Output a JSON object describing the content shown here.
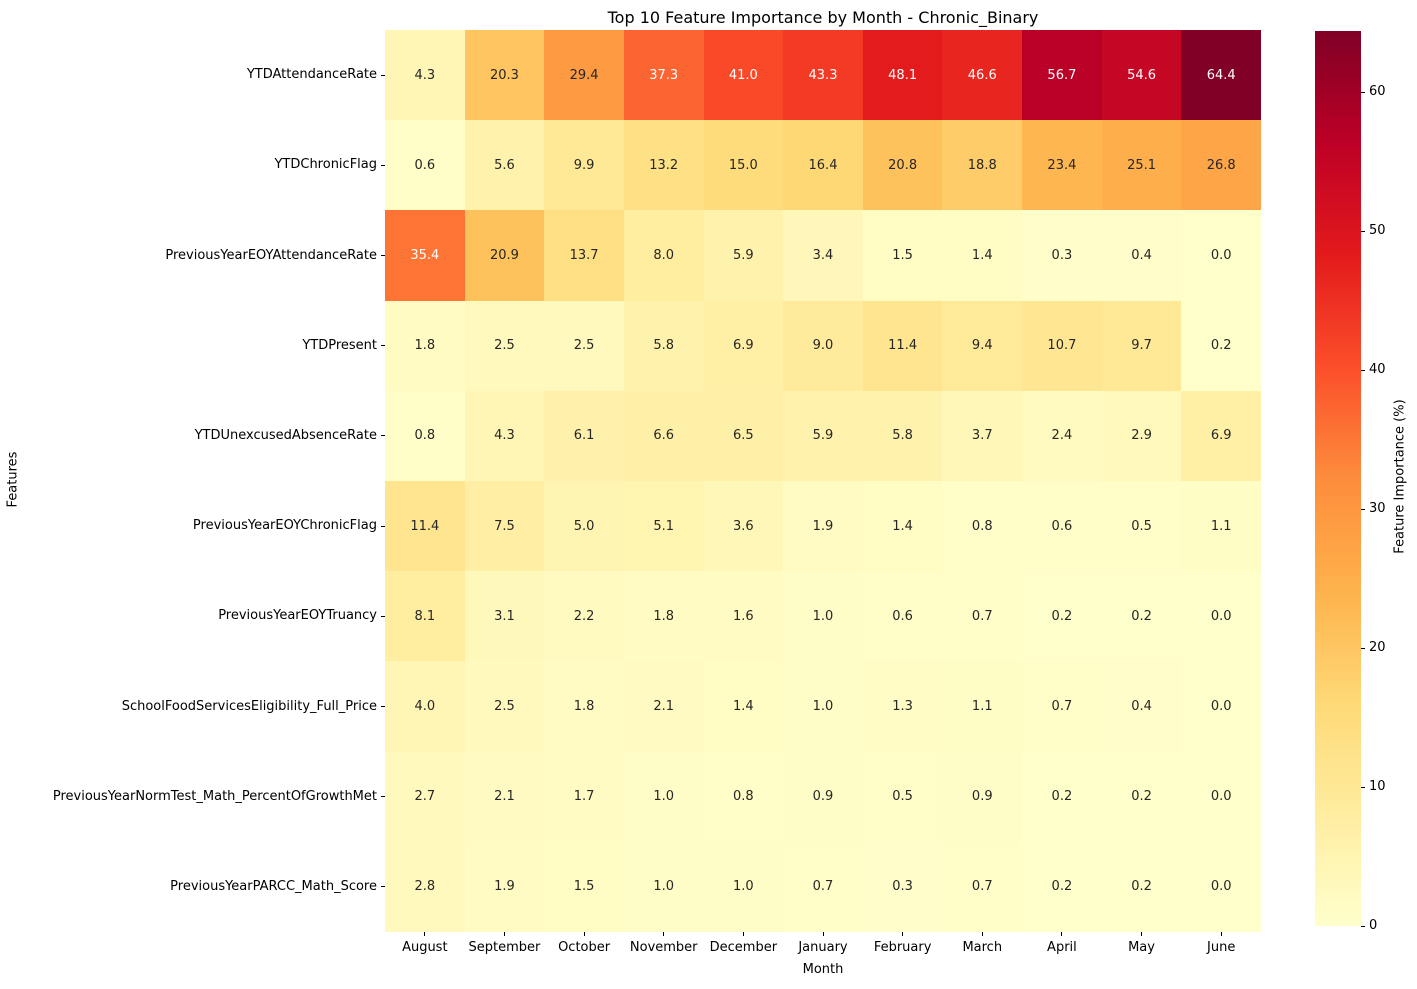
{
  "chart_data": {
    "type": "heatmap",
    "title": "Top 10 Feature Importance by Month - Chronic_Binary",
    "xlabel": "Month",
    "ylabel": "Features",
    "colorbar_label": "Feature Importance (%)",
    "colorbar_ticks": [
      0,
      10,
      20,
      30,
      40,
      50,
      60
    ],
    "colormap": "YlOrRd",
    "colormap_stops": [
      "#ffffcc",
      "#ffeda0",
      "#fed976",
      "#feb24c",
      "#fd8d3c",
      "#fc4e2a",
      "#e31a1c",
      "#bd0026",
      "#800026"
    ],
    "vmin": 0,
    "vmax": 64.4,
    "annotation_dark_text_color": "#262626",
    "annotation_light_text_color": "#ffffff",
    "categories": [
      "August",
      "September",
      "October",
      "November",
      "December",
      "January",
      "February",
      "March",
      "April",
      "May",
      "June"
    ],
    "series": [
      {
        "name": "YTDAttendanceRate",
        "values": [
          4.3,
          20.3,
          29.4,
          37.3,
          41.0,
          43.3,
          48.1,
          46.6,
          56.7,
          54.6,
          64.4
        ]
      },
      {
        "name": "YTDChronicFlag",
        "values": [
          0.6,
          5.6,
          9.9,
          13.2,
          15.0,
          16.4,
          20.8,
          18.8,
          23.4,
          25.1,
          26.8
        ]
      },
      {
        "name": "PreviousYearEOYAttendanceRate",
        "values": [
          35.4,
          20.9,
          13.7,
          8.0,
          5.9,
          3.4,
          1.5,
          1.4,
          0.3,
          0.4,
          0.0
        ]
      },
      {
        "name": "YTDPresent",
        "values": [
          1.8,
          2.5,
          2.5,
          5.8,
          6.9,
          9.0,
          11.4,
          9.4,
          10.7,
          9.7,
          0.2
        ]
      },
      {
        "name": "YTDUnexcusedAbsenceRate",
        "values": [
          0.8,
          4.3,
          6.1,
          6.6,
          6.5,
          5.9,
          5.8,
          3.7,
          2.4,
          2.9,
          6.9
        ]
      },
      {
        "name": "PreviousYearEOYChronicFlag",
        "values": [
          11.4,
          7.5,
          5.0,
          5.1,
          3.6,
          1.9,
          1.4,
          0.8,
          0.6,
          0.5,
          1.1
        ]
      },
      {
        "name": "PreviousYearEOYTruancy",
        "values": [
          8.1,
          3.1,
          2.2,
          1.8,
          1.6,
          1.0,
          0.6,
          0.7,
          0.2,
          0.2,
          0.0
        ]
      },
      {
        "name": "SchoolFoodServicesEligibility_Full_Price",
        "values": [
          4.0,
          2.5,
          1.8,
          2.1,
          1.4,
          1.0,
          1.3,
          1.1,
          0.7,
          0.4,
          0.0
        ]
      },
      {
        "name": "PreviousYearNormTest_Math_PercentOfGrowthMet",
        "values": [
          2.7,
          2.1,
          1.7,
          1.0,
          0.8,
          0.9,
          0.5,
          0.9,
          0.2,
          0.2,
          0.0
        ]
      },
      {
        "name": "PreviousYearPARCC_Math_Score",
        "values": [
          2.8,
          1.9,
          1.5,
          1.0,
          1.0,
          0.7,
          0.3,
          0.7,
          0.2,
          0.2,
          0.0
        ]
      }
    ]
  }
}
